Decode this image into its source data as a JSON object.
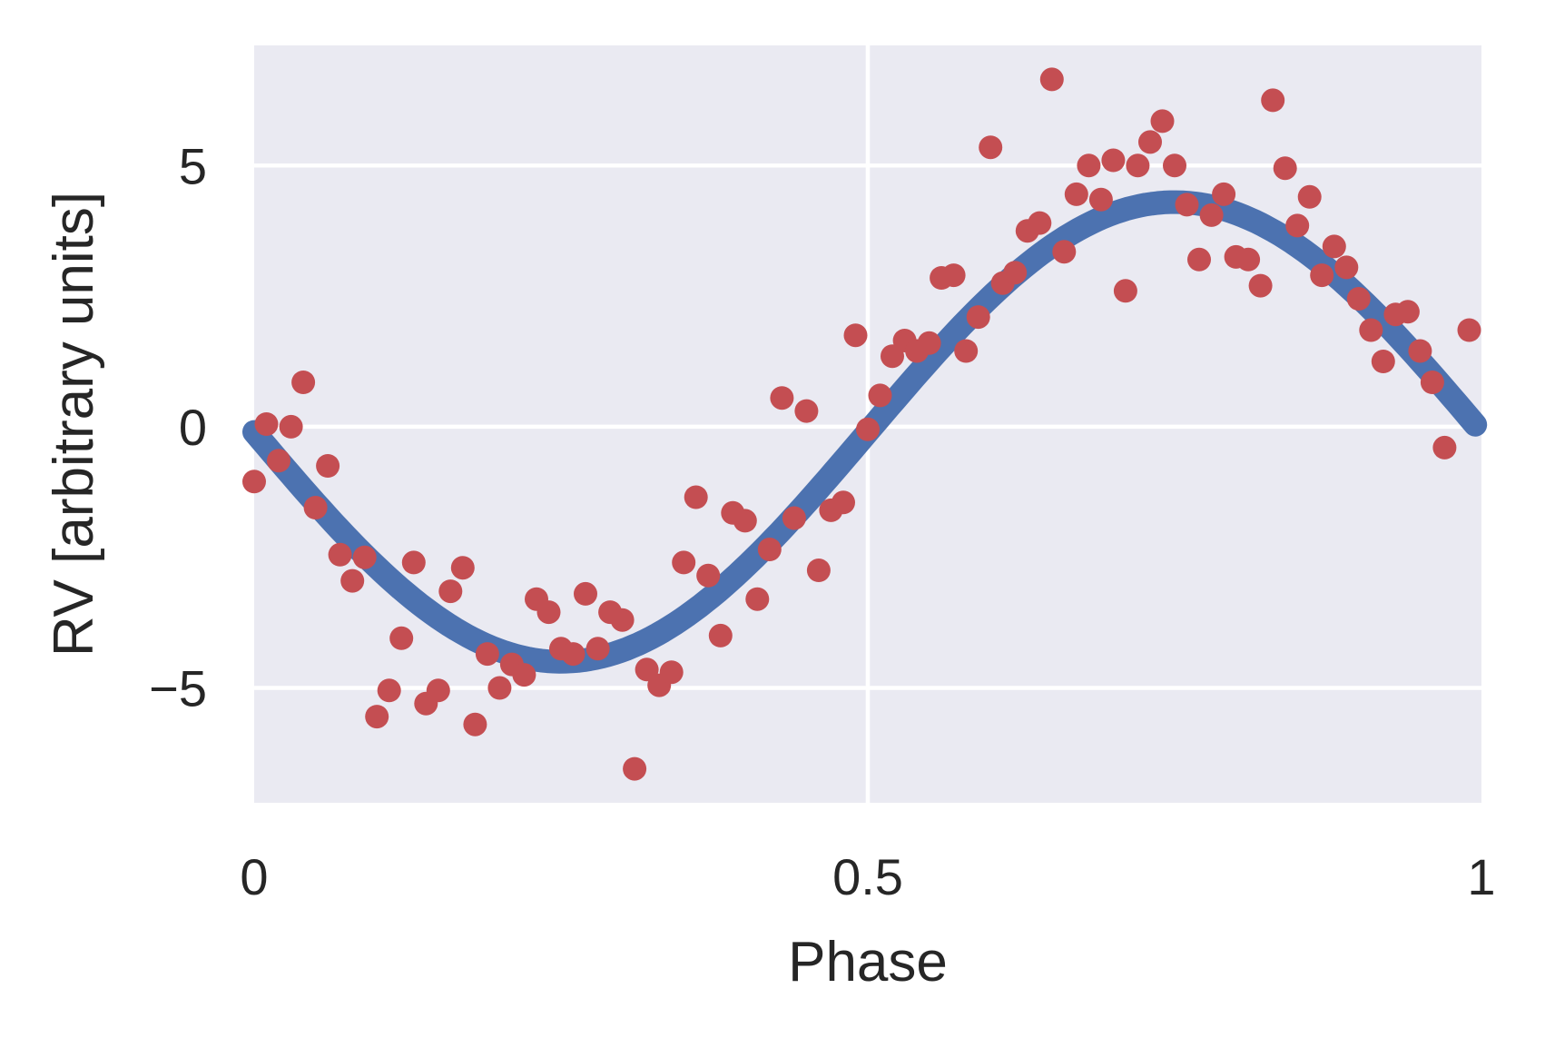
{
  "chart_data": {
    "type": "scatter",
    "title": "",
    "xlabel": "Phase",
    "ylabel": "RV [arbitrary units]",
    "xlim": [
      0,
      1
    ],
    "ylim": [
      -7.2,
      7.3
    ],
    "grid": true,
    "background_color": "#eaeaf2",
    "x_ticks": [
      {
        "value": 0,
        "label": "0"
      },
      {
        "value": 0.5,
        "label": "0.5"
      },
      {
        "value": 1,
        "label": "1"
      }
    ],
    "y_ticks": [
      {
        "value": 5,
        "label": "5"
      },
      {
        "value": 0,
        "label": "0"
      },
      {
        "value": -5,
        "label": "−5"
      }
    ],
    "series": [
      {
        "type": "scatter",
        "color": "#c44e52",
        "points": [
          [
            0.0,
            -1.05
          ],
          [
            0.01,
            0.05
          ],
          [
            0.02,
            -0.65
          ],
          [
            0.03,
            0.0
          ],
          [
            0.04,
            0.85
          ],
          [
            0.05,
            -1.55
          ],
          [
            0.06,
            -0.75
          ],
          [
            0.07,
            -2.45
          ],
          [
            0.08,
            -2.95
          ],
          [
            0.09,
            -2.5
          ],
          [
            0.1,
            -5.55
          ],
          [
            0.11,
            -5.05
          ],
          [
            0.12,
            -4.05
          ],
          [
            0.13,
            -2.6
          ],
          [
            0.14,
            -5.3
          ],
          [
            0.15,
            -5.05
          ],
          [
            0.16,
            -3.15
          ],
          [
            0.17,
            -2.7
          ],
          [
            0.18,
            -5.7
          ],
          [
            0.19,
            -4.35
          ],
          [
            0.2,
            -5.0
          ],
          [
            0.21,
            -4.55
          ],
          [
            0.22,
            -4.75
          ],
          [
            0.23,
            -3.3
          ],
          [
            0.24,
            -3.55
          ],
          [
            0.25,
            -4.25
          ],
          [
            0.26,
            -4.35
          ],
          [
            0.27,
            -3.2
          ],
          [
            0.28,
            -4.25
          ],
          [
            0.29,
            -3.55
          ],
          [
            0.3,
            -3.7
          ],
          [
            0.31,
            -6.55
          ],
          [
            0.32,
            -4.65
          ],
          [
            0.33,
            -4.95
          ],
          [
            0.34,
            -4.7
          ],
          [
            0.35,
            -2.6
          ],
          [
            0.36,
            -1.35
          ],
          [
            0.37,
            -2.85
          ],
          [
            0.38,
            -4.0
          ],
          [
            0.39,
            -1.65
          ],
          [
            0.4,
            -1.8
          ],
          [
            0.41,
            -3.3
          ],
          [
            0.42,
            -2.35
          ],
          [
            0.43,
            0.55
          ],
          [
            0.44,
            -1.75
          ],
          [
            0.45,
            0.3
          ],
          [
            0.46,
            -2.75
          ],
          [
            0.47,
            -1.6
          ],
          [
            0.48,
            -1.45
          ],
          [
            0.49,
            1.75
          ],
          [
            0.5,
            -0.05
          ],
          [
            0.51,
            0.6
          ],
          [
            0.52,
            1.35
          ],
          [
            0.53,
            1.65
          ],
          [
            0.54,
            1.45
          ],
          [
            0.55,
            1.6
          ],
          [
            0.56,
            2.85
          ],
          [
            0.57,
            2.9
          ],
          [
            0.58,
            1.45
          ],
          [
            0.59,
            2.1
          ],
          [
            0.6,
            5.35
          ],
          [
            0.61,
            2.75
          ],
          [
            0.62,
            2.95
          ],
          [
            0.63,
            3.75
          ],
          [
            0.64,
            3.9
          ],
          [
            0.65,
            6.65
          ],
          [
            0.66,
            3.35
          ],
          [
            0.67,
            4.45
          ],
          [
            0.68,
            5.0
          ],
          [
            0.69,
            4.35
          ],
          [
            0.7,
            5.1
          ],
          [
            0.71,
            2.6
          ],
          [
            0.72,
            5.0
          ],
          [
            0.73,
            5.45
          ],
          [
            0.74,
            5.85
          ],
          [
            0.75,
            5.0
          ],
          [
            0.76,
            4.25
          ],
          [
            0.77,
            3.2
          ],
          [
            0.78,
            4.05
          ],
          [
            0.79,
            4.45
          ],
          [
            0.8,
            3.25
          ],
          [
            0.81,
            3.2
          ],
          [
            0.82,
            2.7
          ],
          [
            0.83,
            6.25
          ],
          [
            0.84,
            4.95
          ],
          [
            0.85,
            3.85
          ],
          [
            0.86,
            4.4
          ],
          [
            0.87,
            2.9
          ],
          [
            0.88,
            3.45
          ],
          [
            0.89,
            3.05
          ],
          [
            0.9,
            2.45
          ],
          [
            0.91,
            1.85
          ],
          [
            0.92,
            1.25
          ],
          [
            0.93,
            2.15
          ],
          [
            0.94,
            2.2
          ],
          [
            0.95,
            1.45
          ],
          [
            0.96,
            0.85
          ],
          [
            0.97,
            -0.4
          ],
          [
            0.99,
            1.85
          ]
        ]
      },
      {
        "type": "line",
        "color": "#4c72b0",
        "model": "sinusoid",
        "amplitude": 4.4,
        "offset": -0.1,
        "phase_at_zero_crossing": 0.5,
        "x_range": [
          0,
          0.995
        ]
      }
    ]
  }
}
